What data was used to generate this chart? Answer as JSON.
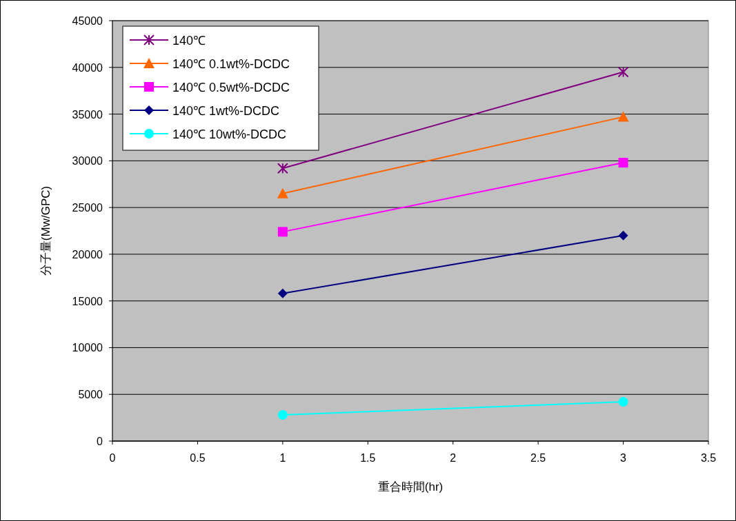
{
  "chart_data": {
    "type": "line",
    "xlabel": "重合時間(hr)",
    "ylabel": "分子量(Mw/GPC)",
    "x": [
      1,
      3
    ],
    "series": [
      {
        "name": "140℃",
        "color": "#800080",
        "marker": "cross",
        "values": [
          29200,
          39500
        ]
      },
      {
        "name": "140℃ 0.1wt%-DCDC",
        "color": "#ff6600",
        "marker": "triangle",
        "values": [
          26500,
          34700
        ]
      },
      {
        "name": "140℃ 0.5wt%-DCDC",
        "color": "#ff00ff",
        "marker": "square",
        "values": [
          22400,
          29800
        ]
      },
      {
        "name": "140℃ 1wt%-DCDC",
        "color": "#000080",
        "marker": "diamond",
        "values": [
          15800,
          22000
        ]
      },
      {
        "name": "140℃ 10wt%-DCDC",
        "color": "#00ffff",
        "marker": "circle",
        "values": [
          2800,
          4200
        ]
      }
    ],
    "xlim": [
      0,
      3.5
    ],
    "xticks": [
      0,
      0.5,
      1,
      1.5,
      2,
      2.5,
      3,
      3.5
    ],
    "ylim": [
      0,
      45000
    ],
    "yticks": [
      0,
      5000,
      10000,
      15000,
      20000,
      25000,
      30000,
      35000,
      40000,
      45000
    ],
    "grid": "y",
    "legend": "top left",
    "line_style": "solid"
  }
}
